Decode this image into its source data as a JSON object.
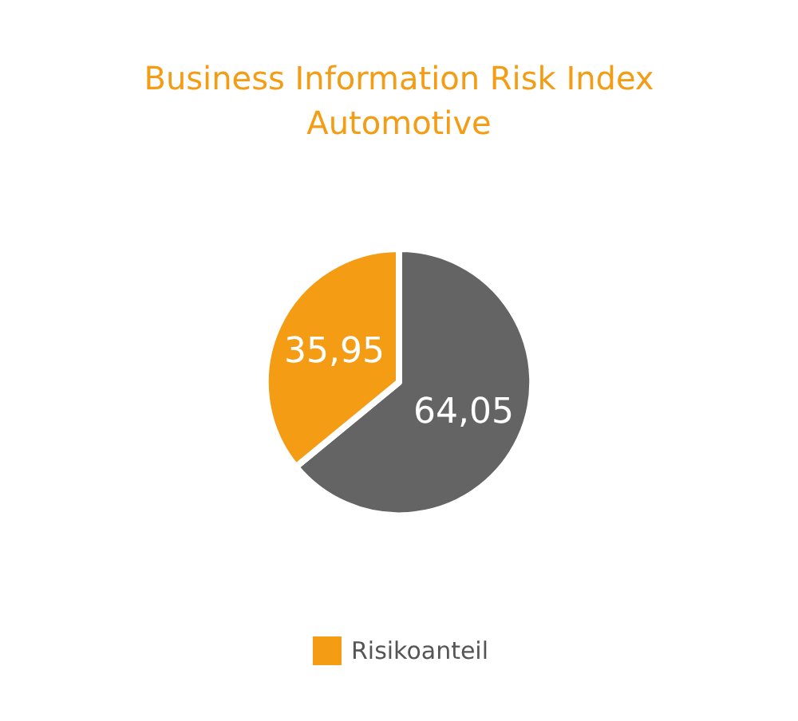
{
  "chart_data": {
    "type": "pie",
    "title": "Business Information Risk Index\nAutomotive",
    "categories": [
      null,
      "Risikoanteil"
    ],
    "values": [
      64.05,
      35.95
    ],
    "value_labels": [
      "64,05",
      "35,95"
    ],
    "colors": [
      "#646464",
      "#f39c14"
    ],
    "legend": "bottom"
  }
}
